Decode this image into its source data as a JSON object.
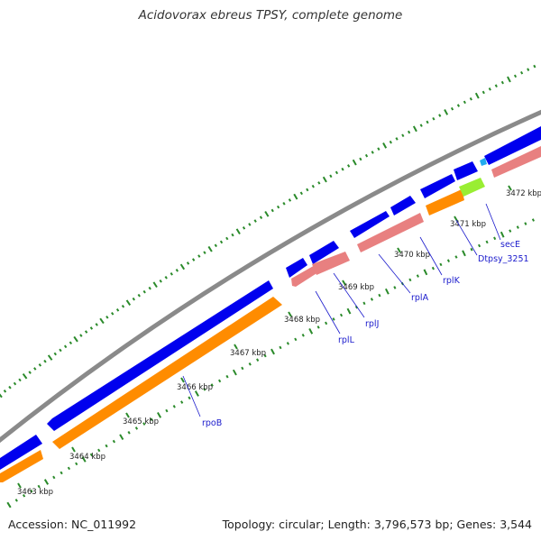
{
  "title": "Acidovorax ebreus TPSY, complete genome",
  "footer": {
    "accession": "Accession: NC_011992",
    "summary": "Topology: circular; Length: 3,796,573 bp; Genes: 3,544"
  },
  "colors": {
    "backbone": "#8a8a8a",
    "cds_forward": "#0000ee",
    "cds_reverse": "#ff8c00",
    "gene_pink": "#e88080",
    "gene_green": "#99ee33",
    "tick": "#2a8a2a",
    "label": "#1a1acc"
  },
  "coordinate_labels": [
    "3463 kbp",
    "3464 kbp",
    "3465 kbp",
    "3466 kbp",
    "3467 kbp",
    "3468 kbp",
    "3469 kbp",
    "3470 kbp",
    "3471 kbp",
    "3472 kbp"
  ],
  "gene_labels": [
    "rpoB",
    "rplL",
    "rplJ",
    "rplA",
    "rplK",
    "Dtpsy_3251",
    "secE"
  ]
}
